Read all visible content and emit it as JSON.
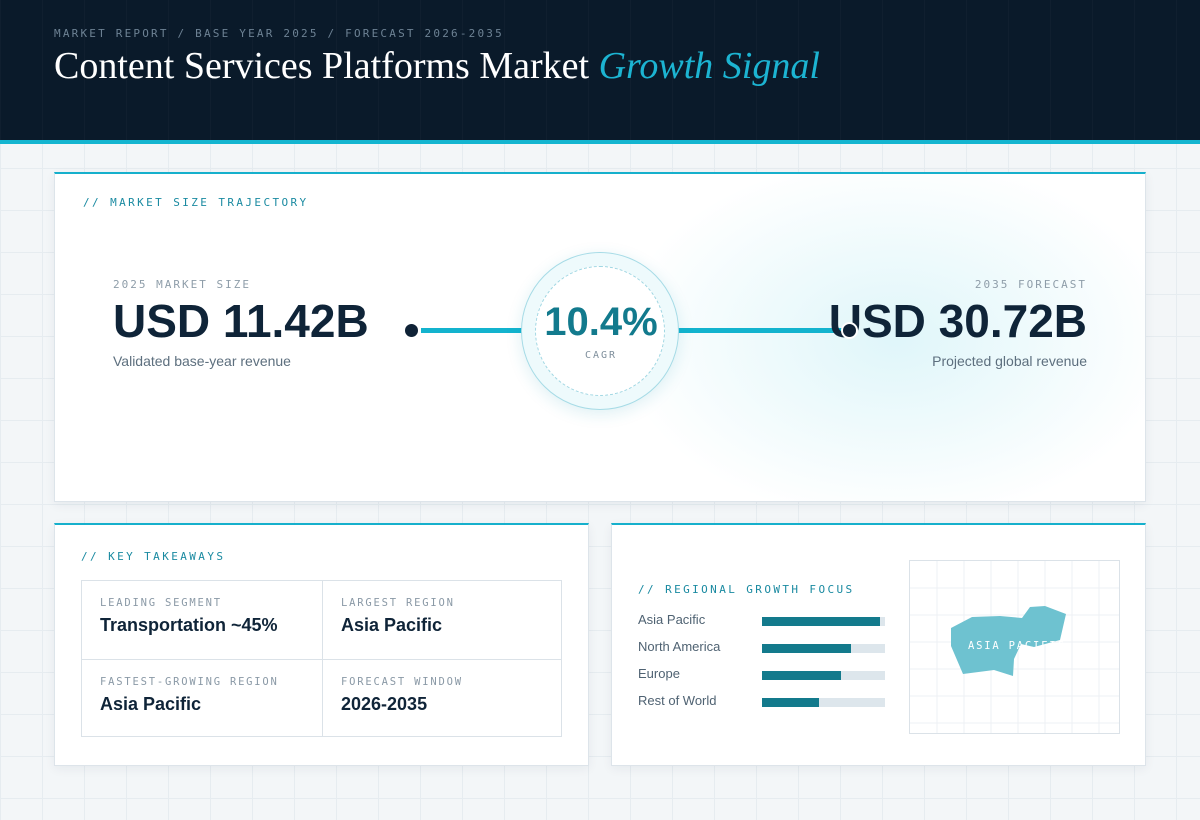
{
  "header": {
    "breadcrumb": "MARKET REPORT / BASE YEAR 2025 / FORECAST 2026-2035",
    "title_main": "Content Services Platforms Market",
    "title_accent": "Growth Signal"
  },
  "trajectory": {
    "section_label": "// MARKET SIZE TRAJECTORY",
    "base": {
      "label": "2025 MARKET SIZE",
      "value": "USD 11.42B",
      "caption": "Validated base-year revenue"
    },
    "forecast": {
      "label": "2035 FORECAST",
      "value": "USD 30.72B",
      "caption": "Projected global revenue"
    },
    "cagr": {
      "value": "10.4%",
      "label": "CAGR"
    }
  },
  "takeaways": {
    "section_label": "// KEY TAKEAWAYS",
    "items": [
      {
        "label": "LEADING SEGMENT",
        "value": "Transportation ~45%"
      },
      {
        "label": "LARGEST REGION",
        "value": "Asia Pacific"
      },
      {
        "label": "FASTEST-GROWING REGION",
        "value": "Asia Pacific"
      },
      {
        "label": "FORECAST WINDOW",
        "value": "2026-2035"
      }
    ]
  },
  "regional": {
    "section_label": "// REGIONAL GROWTH FOCUS",
    "regions": [
      {
        "name": "Asia Pacific",
        "level": 0.96
      },
      {
        "name": "North America",
        "level": 0.72
      },
      {
        "name": "Europe",
        "level": 0.64
      },
      {
        "name": "Rest of World",
        "level": 0.46
      }
    ],
    "map_label": "ASIA PACIFIC"
  },
  "colors": {
    "accent": "#14b5d0",
    "header_bg": "#0a1a2a",
    "bar_fill": "#137a8c",
    "map_highlight": "#6ec2d0"
  }
}
